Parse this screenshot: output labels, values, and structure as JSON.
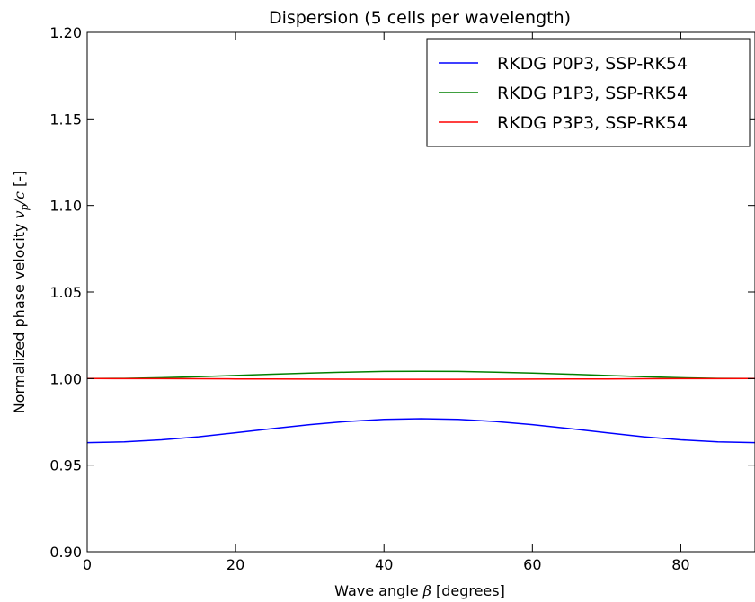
{
  "chart_data": {
    "type": "line",
    "title": "Dispersion (5 cells per wavelength)",
    "xlabel_prefix": "Wave angle ",
    "xlabel_symbol": "β",
    "xlabel_suffix": " [degrees]",
    "ylabel_prefix": "Normalized phase velocity ",
    "ylabel_symbol_v": "v",
    "ylabel_symbol_sub": "p",
    "ylabel_symbol_rest": "/c",
    "ylabel_suffix": " [-]",
    "xlim": [
      0,
      90
    ],
    "ylim": [
      0.9,
      1.2
    ],
    "xticks": [
      0,
      20,
      40,
      60,
      80
    ],
    "xtick_labels": [
      "0",
      "20",
      "40",
      "60",
      "80"
    ],
    "yticks": [
      0.9,
      0.95,
      1.0,
      1.05,
      1.1,
      1.15,
      1.2
    ],
    "ytick_labels": [
      "0.90",
      "0.95",
      "1.00",
      "1.05",
      "1.10",
      "1.15",
      "1.20"
    ],
    "grid": false,
    "legend_position": "top-right",
    "x": [
      0,
      5,
      10,
      15,
      20,
      25,
      30,
      35,
      40,
      45,
      50,
      55,
      60,
      65,
      70,
      75,
      80,
      85,
      90
    ],
    "series": [
      {
        "name": "RKDG P0P3, SSP-RK54",
        "color": "#0000ff",
        "values": [
          0.963,
          0.9634,
          0.9646,
          0.9664,
          0.9687,
          0.9711,
          0.9734,
          0.9752,
          0.9764,
          0.9768,
          0.9764,
          0.9752,
          0.9734,
          0.9711,
          0.9687,
          0.9664,
          0.9646,
          0.9634,
          0.963
        ]
      },
      {
        "name": "RKDG P1P3, SSP-RK54",
        "color": "#008000",
        "values": [
          1.0,
          1.0001,
          1.0005,
          1.0011,
          1.0018,
          1.0025,
          1.0032,
          1.0037,
          1.0041,
          1.0042,
          1.0041,
          1.0037,
          1.0032,
          1.0025,
          1.0018,
          1.0011,
          1.0005,
          1.0001,
          1.0
        ]
      },
      {
        "name": "RKDG P3P3, SSP-RK54",
        "color": "#ff0000",
        "values": [
          1.0,
          0.99999,
          0.99995,
          0.99989,
          0.99982,
          0.99975,
          0.99969,
          0.99964,
          0.99961,
          0.9996,
          0.99961,
          0.99964,
          0.99969,
          0.99975,
          0.99982,
          0.99989,
          0.99995,
          0.99999,
          1.0
        ]
      }
    ]
  }
}
